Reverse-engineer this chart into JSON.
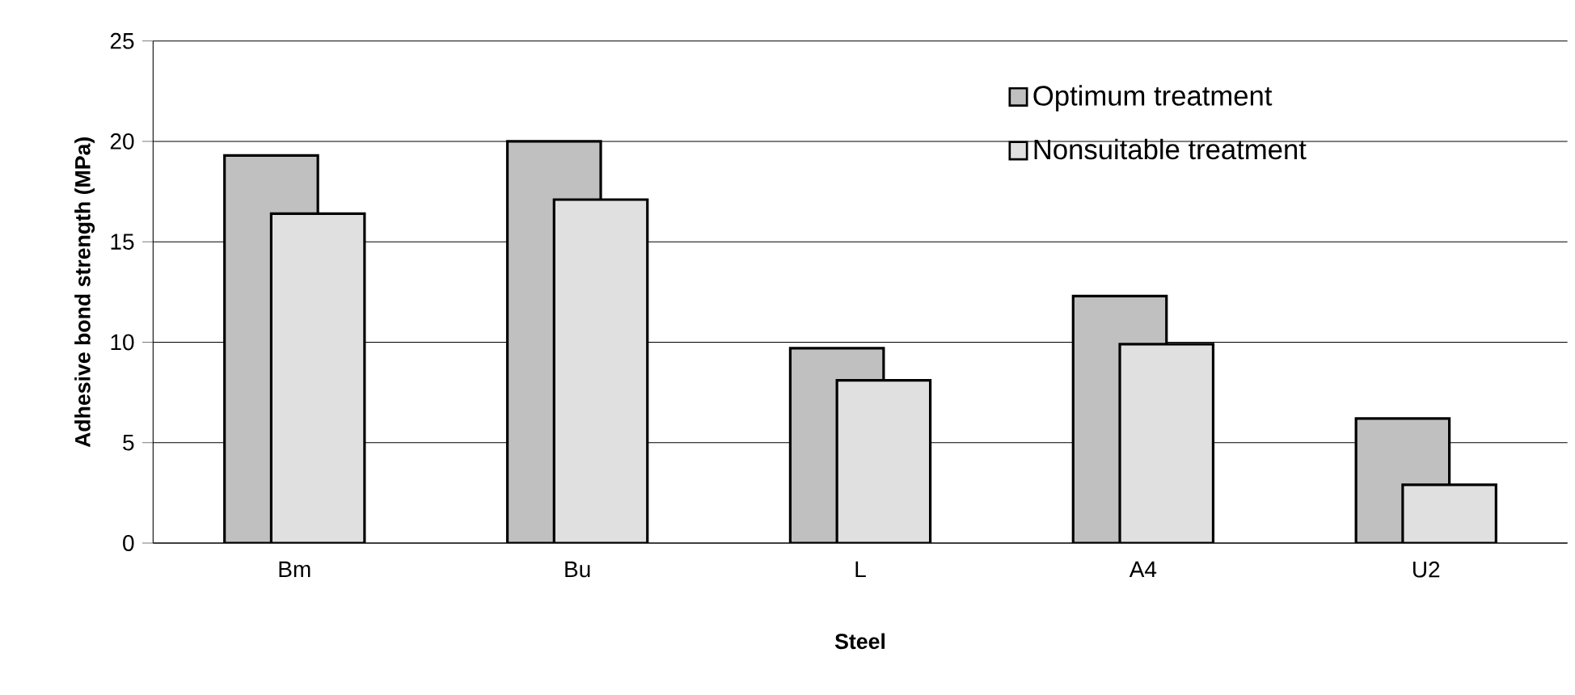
{
  "chart_data": {
    "type": "bar",
    "xlabel": "Steel",
    "ylabel": "Adhesive bond strength (MPa)",
    "categories": [
      "Bm",
      "Bu",
      "L",
      "A4",
      "U2"
    ],
    "series": [
      {
        "name": "Optimum treatment",
        "color": "#c0c0c0",
        "values": [
          19.3,
          20.0,
          9.7,
          12.3,
          6.2
        ]
      },
      {
        "name": "Nonsuitable treatment",
        "color": "#e0e0e0",
        "values": [
          16.4,
          17.1,
          8.1,
          9.9,
          2.9
        ]
      }
    ],
    "ylim": [
      0,
      25
    ],
    "yticks": [
      0,
      5,
      10,
      15,
      20,
      25
    ],
    "grid": "y",
    "legend": "top right"
  }
}
